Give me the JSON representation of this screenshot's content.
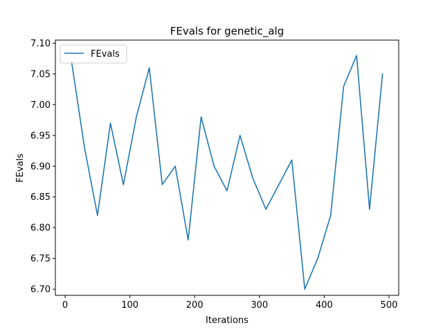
{
  "chart_data": {
    "type": "line",
    "title": "FEvals for genetic_alg",
    "xlabel": "Iterations",
    "ylabel": "FEvals",
    "xlim": [
      -15,
      515
    ],
    "ylim": [
      6.69,
      7.105
    ],
    "x_ticks": [
      0,
      100,
      200,
      300,
      400,
      500
    ],
    "x_tick_labels": [
      "0",
      "100",
      "200",
      "300",
      "400",
      "500"
    ],
    "y_ticks": [
      6.7,
      6.75,
      6.8,
      6.85,
      6.9,
      6.95,
      7.0,
      7.05,
      7.1
    ],
    "y_tick_labels": [
      "6.70",
      "6.75",
      "6.80",
      "6.85",
      "6.90",
      "6.95",
      "7.00",
      "7.05",
      "7.10"
    ],
    "grid": false,
    "legend_position": "top-left",
    "series": [
      {
        "name": "FEvals",
        "color": "#1f77b4",
        "x": [
          10,
          30,
          50,
          70,
          90,
          110,
          130,
          150,
          170,
          190,
          210,
          230,
          250,
          270,
          290,
          310,
          330,
          350,
          370,
          390,
          410,
          430,
          450,
          470,
          490
        ],
        "y": [
          7.07,
          6.93,
          6.82,
          6.97,
          6.87,
          6.98,
          7.06,
          6.87,
          6.9,
          6.78,
          6.98,
          6.9,
          6.86,
          6.95,
          6.88,
          6.83,
          6.87,
          6.91,
          6.7,
          6.75,
          6.82,
          7.03,
          7.08,
          6.83,
          7.05
        ]
      }
    ]
  }
}
